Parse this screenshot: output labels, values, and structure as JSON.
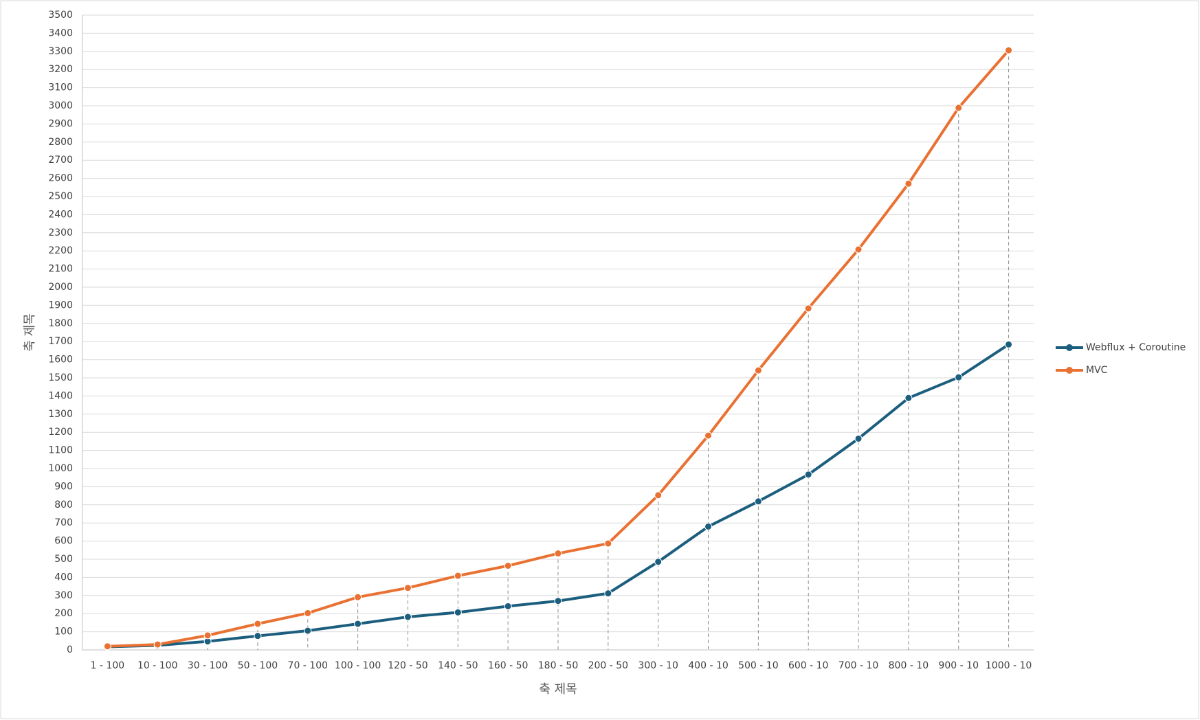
{
  "chart_data": {
    "type": "line",
    "x_label": "축 제목",
    "y_label": "축 제목",
    "categories": [
      "1 - 100",
      "10 - 100",
      "30 - 100",
      "50 - 100",
      "70 - 100",
      "100 - 100",
      "120 - 50",
      "140 - 50",
      "160 - 50",
      "180 - 50",
      "200 - 50",
      "300 - 10",
      "400 - 10",
      "500 - 10",
      "600 - 10",
      "700 - 10",
      "800 - 10",
      "900 - 10",
      "1000 - 10"
    ],
    "series": [
      {
        "name": "Webflux + Coroutine",
        "color": "#1b5e7e",
        "values": [
          17,
          25,
          47,
          77,
          106,
          144,
          182,
          207,
          241,
          270,
          312,
          486,
          680,
          819,
          967,
          1165,
          1389,
          1503,
          1684
        ]
      },
      {
        "name": "MVC",
        "color": "#e97132",
        "values": [
          20,
          30,
          80,
          144,
          203,
          291,
          342,
          409,
          464,
          532,
          587,
          853,
          1182,
          1541,
          1883,
          2208,
          2571,
          2989,
          3306
        ]
      }
    ],
    "ylim": [
      0,
      3500
    ],
    "yticks": [
      0,
      100,
      200,
      300,
      400,
      500,
      600,
      700,
      800,
      900,
      1000,
      1100,
      1200,
      1300,
      1400,
      1500,
      1600,
      1700,
      1800,
      1900,
      2000,
      2100,
      2200,
      2300,
      2400,
      2500,
      2600,
      2700,
      2800,
      2900,
      3000,
      3100,
      3200,
      3300,
      3400,
      3500
    ],
    "grid": true,
    "drop_lines": true,
    "legend": "right"
  }
}
